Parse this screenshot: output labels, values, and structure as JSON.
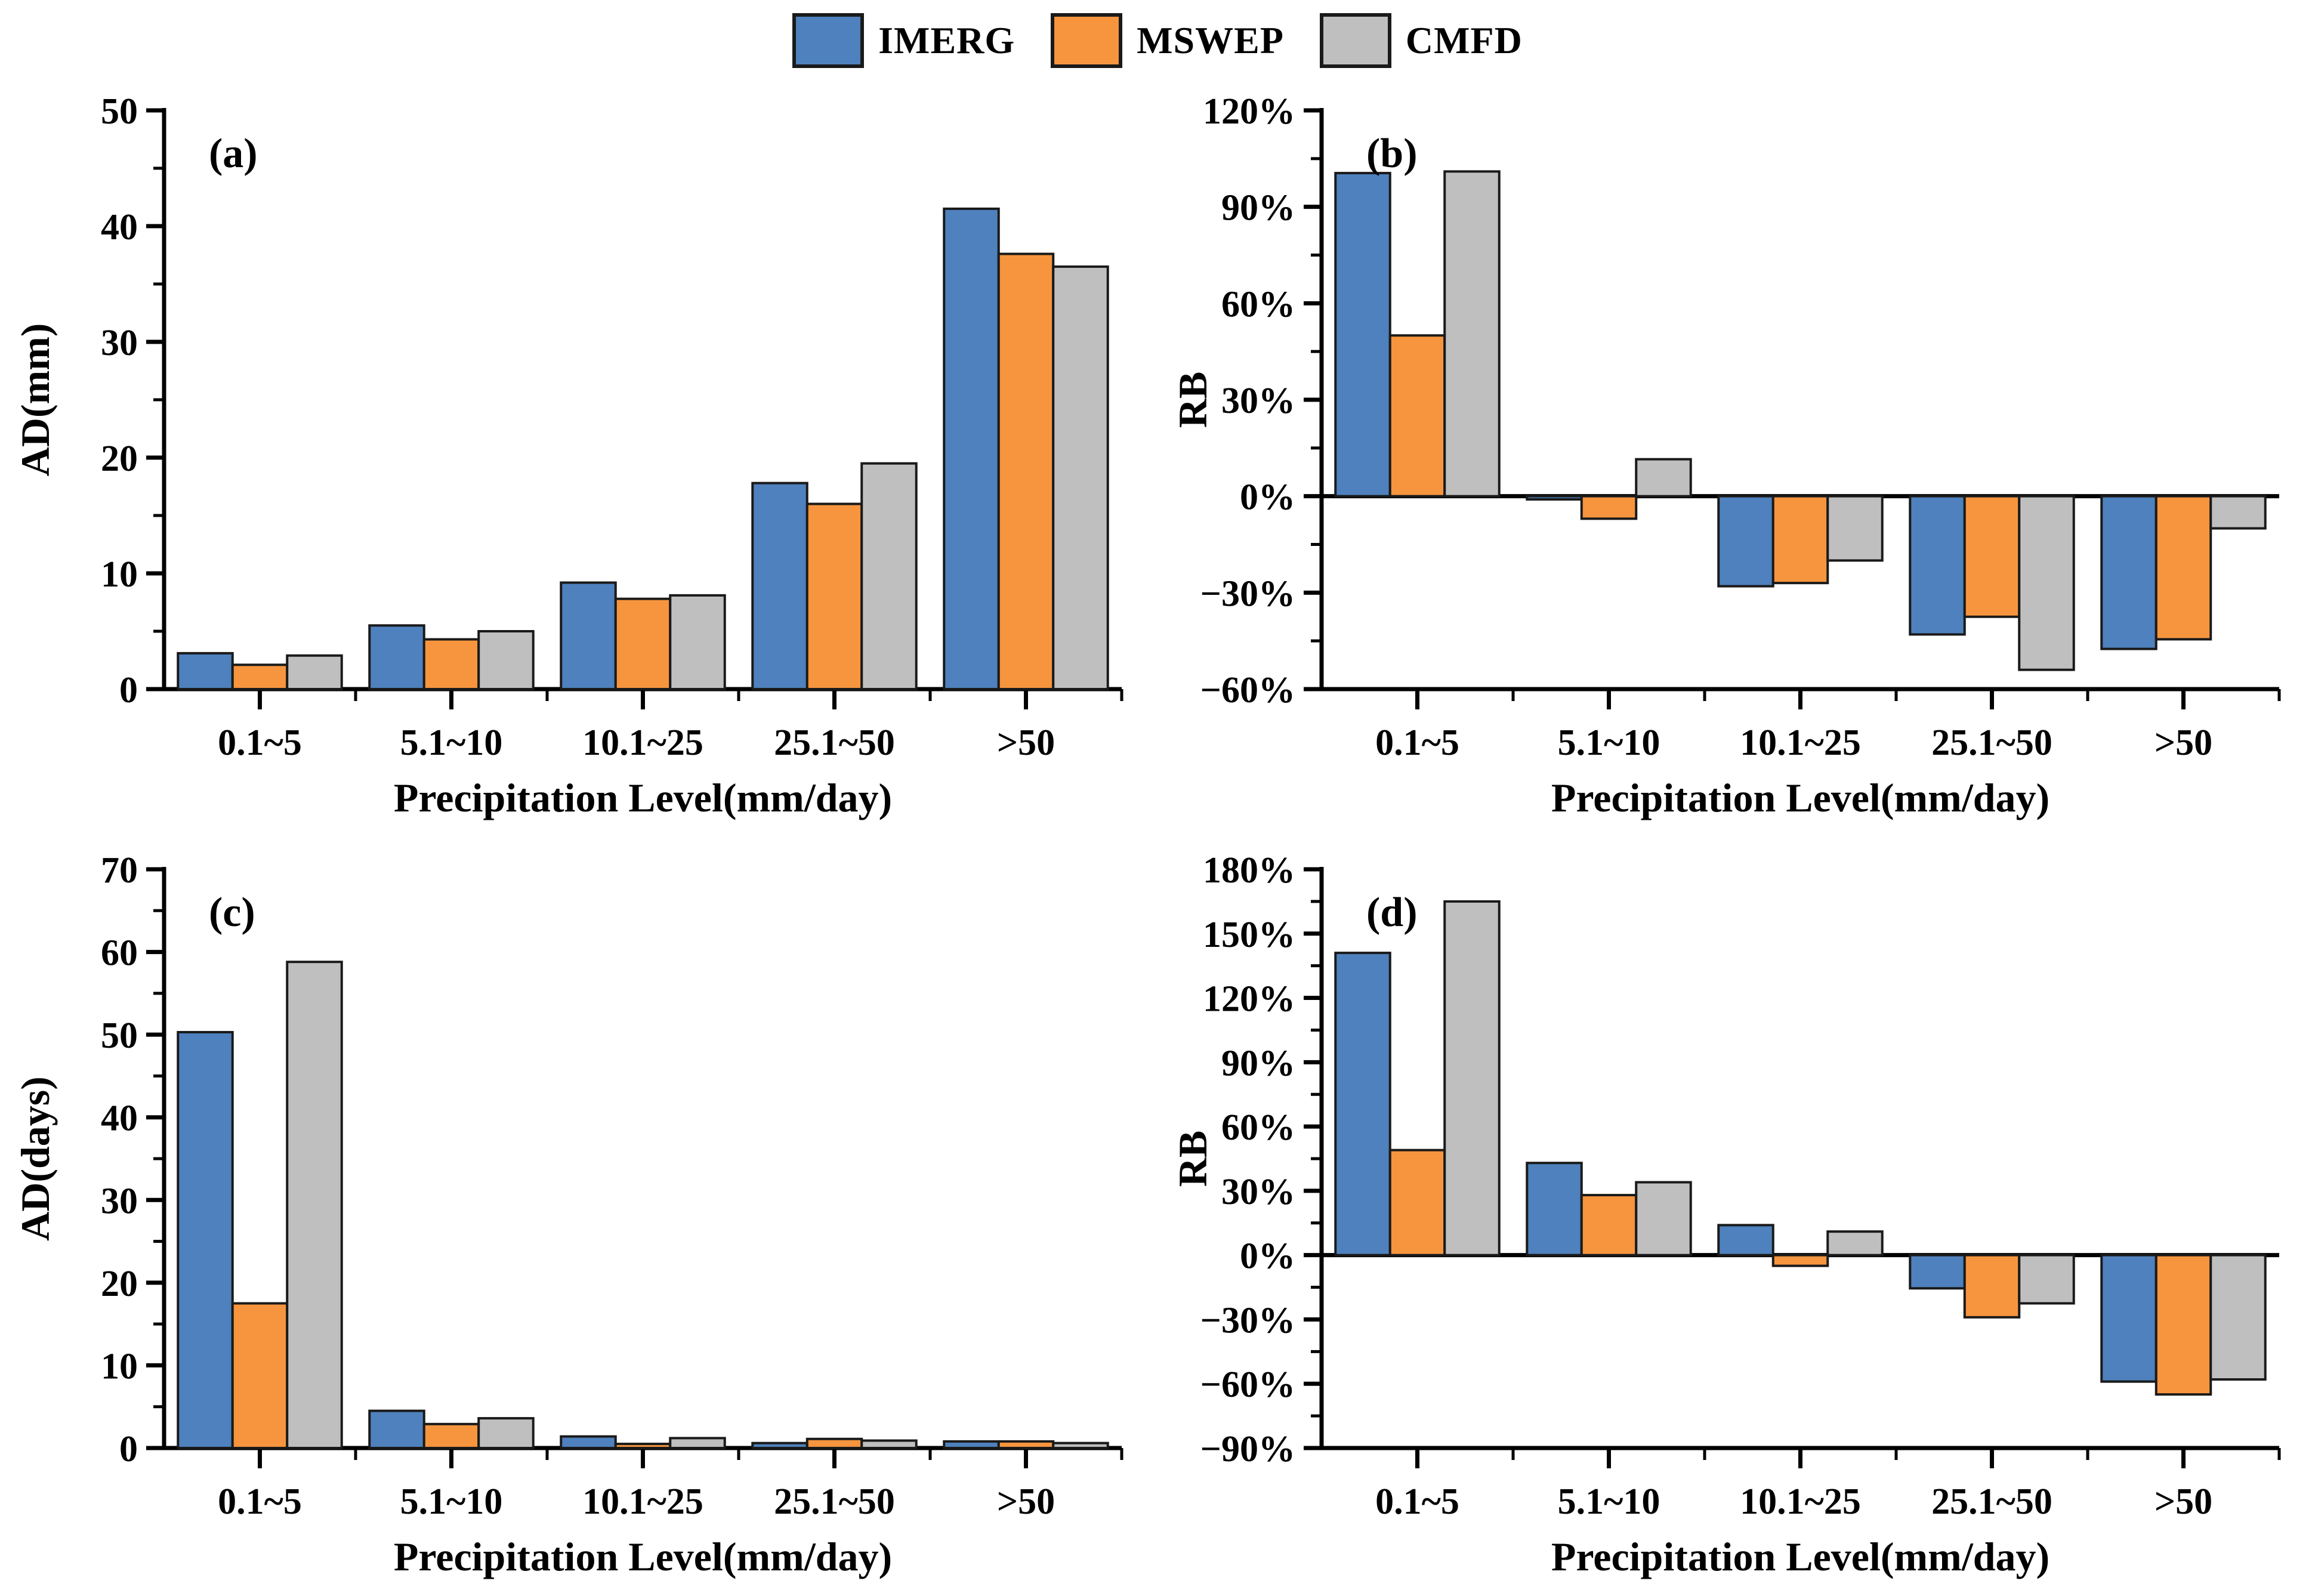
{
  "legend": {
    "items": [
      {
        "label": "IMERG",
        "color": "#4E81BD"
      },
      {
        "label": "MSWEP",
        "color": "#F6953E"
      },
      {
        "label": "CMFD",
        "color": "#BFBFBF"
      }
    ]
  },
  "colors": {
    "imerg": "#4E81BD",
    "mswep": "#F6953E",
    "cmfd": "#BFBFBF",
    "axis": "#000000",
    "bar_border": "#1a1a1a",
    "background": "#ffffff"
  },
  "categories": [
    "0.1~5",
    "5.1~10",
    "10.1~25",
    "25.1~50",
    ">50"
  ],
  "xlabel": "Precipitation Level(mm/day)",
  "chart_data": [
    {
      "type": "bar",
      "panel_label": "(a)",
      "ylabel": "AD(mm)",
      "xlabel": "Precipitation Level(mm/day)",
      "percent": false,
      "ylim": [
        0,
        50
      ],
      "ytick_step": 10,
      "grid": false,
      "legend_position": "top-center-shared",
      "categories": [
        "0.1~5",
        "5.1~10",
        "10.1~25",
        "25.1~50",
        ">50"
      ],
      "series": [
        {
          "name": "IMERG",
          "values": [
            3.1,
            5.5,
            9.2,
            17.8,
            41.5
          ]
        },
        {
          "name": "MSWEP",
          "values": [
            2.1,
            4.3,
            7.8,
            16.0,
            37.6
          ]
        },
        {
          "name": "CMFD",
          "values": [
            2.9,
            5.0,
            8.1,
            19.5,
            36.5
          ]
        }
      ]
    },
    {
      "type": "bar",
      "panel_label": "(b)",
      "ylabel": "RB",
      "xlabel": "Precipitation Level(mm/day)",
      "percent": true,
      "ylim": [
        -60,
        120
      ],
      "ytick_step": 30,
      "grid": false,
      "legend_position": "top-center-shared",
      "categories": [
        "0.1~5",
        "5.1~10",
        "10.1~25",
        "25.1~50",
        ">50"
      ],
      "series": [
        {
          "name": "IMERG",
          "values": [
            100.5,
            -1.0,
            -28.0,
            -43.0,
            -47.5
          ]
        },
        {
          "name": "MSWEP",
          "values": [
            50.0,
            -7.0,
            -27.0,
            -37.5,
            -44.5
          ]
        },
        {
          "name": "CMFD",
          "values": [
            101.0,
            11.5,
            -20.0,
            -54.0,
            -10.0
          ]
        }
      ]
    },
    {
      "type": "bar",
      "panel_label": "(c)",
      "ylabel": "AD(days)",
      "xlabel": "Precipitation Level(mm/day)",
      "percent": false,
      "ylim": [
        0,
        70
      ],
      "ytick_step": 10,
      "grid": false,
      "legend_position": "top-center-shared",
      "categories": [
        "0.1~5",
        "5.1~10",
        "10.1~25",
        "25.1~50",
        ">50"
      ],
      "series": [
        {
          "name": "IMERG",
          "values": [
            50.3,
            4.5,
            1.4,
            0.6,
            0.8
          ]
        },
        {
          "name": "MSWEP",
          "values": [
            17.5,
            2.9,
            0.5,
            1.1,
            0.8
          ]
        },
        {
          "name": "CMFD",
          "values": [
            58.8,
            3.6,
            1.2,
            0.9,
            0.6
          ]
        }
      ]
    },
    {
      "type": "bar",
      "panel_label": "(d)",
      "ylabel": "RB",
      "xlabel": "Precipitation Level(mm/day)",
      "percent": true,
      "ylim": [
        -90,
        180
      ],
      "ytick_step": 30,
      "grid": false,
      "legend_position": "top-center-shared",
      "categories": [
        "0.1~5",
        "5.1~10",
        "10.1~25",
        "25.1~50",
        ">50"
      ],
      "series": [
        {
          "name": "IMERG",
          "values": [
            141.0,
            43.0,
            14.0,
            -15.5,
            -59.0
          ]
        },
        {
          "name": "MSWEP",
          "values": [
            49.0,
            28.0,
            -5.0,
            -29.0,
            -65.0
          ]
        },
        {
          "name": "CMFD",
          "values": [
            165.0,
            34.0,
            11.0,
            -22.5,
            -58.0
          ]
        }
      ]
    }
  ]
}
